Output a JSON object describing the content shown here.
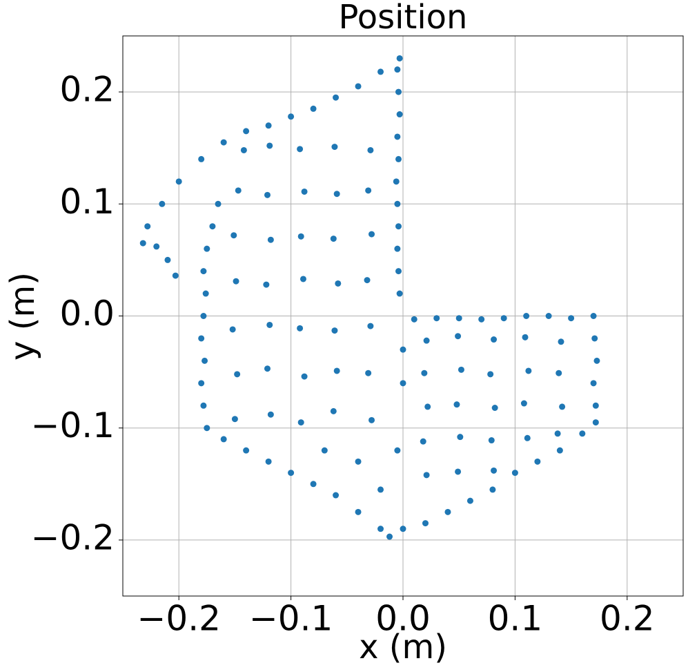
{
  "chart_data": {
    "type": "scatter",
    "title": "Position",
    "xlabel": "x (m)",
    "ylabel": "y (m)",
    "color": "#1f77b4",
    "grid": true,
    "xlim": [
      -0.25,
      0.25
    ],
    "ylim": [
      -0.25,
      0.25
    ],
    "xticks": [
      {
        "value": -0.2,
        "label": "−0.2"
      },
      {
        "value": -0.1,
        "label": "−0.1"
      },
      {
        "value": 0,
        "label": "0.0"
      },
      0.1,
      0.2
    ],
    "yticks": [
      {
        "value": -0.2,
        "label": "−0.2"
      },
      {
        "value": -0.1,
        "label": "−0.1"
      },
      {
        "value": 0,
        "label": "0.0"
      },
      0.1,
      0.2
    ],
    "x": [
      -0.175,
      -0.178,
      -0.18,
      -0.177,
      -0.18,
      -0.178,
      -0.176,
      -0.178,
      -0.175,
      -0.17,
      -0.165,
      -0.16,
      -0.14,
      -0.12,
      -0.1,
      -0.08,
      -0.06,
      -0.04,
      -0.02,
      -0.012,
      0,
      0.02,
      0.04,
      0.06,
      0.08,
      0.1,
      0.12,
      0.14,
      0.16,
      0.172,
      0.172,
      0.17,
      0.173,
      0.171,
      0.17,
      0.15,
      0.13,
      0.11,
      0.09,
      0.07,
      0.05,
      0.03,
      0.01,
      -0.003,
      -0.004,
      -0.005,
      -0.004,
      -0.005,
      -0.006,
      -0.004,
      -0.005,
      -0.003,
      -0.004,
      -0.005,
      -0.003,
      -0.02,
      -0.04,
      -0.06,
      -0.08,
      -0.1,
      -0.12,
      -0.14,
      -0.16,
      -0.18,
      -0.2,
      -0.215,
      -0.228,
      -0.232,
      -0.22,
      -0.21,
      -0.203,
      -0.15,
      -0.118,
      -0.091,
      -0.062,
      -0.028,
      -0.148,
      -0.121,
      -0.088,
      -0.059,
      -0.031,
      -0.152,
      -0.119,
      -0.092,
      -0.061,
      -0.029,
      -0.149,
      -0.122,
      -0.089,
      -0.058,
      -0.032,
      -0.151,
      -0.118,
      -0.091,
      -0.062,
      -0.028,
      -0.147,
      -0.121,
      -0.088,
      -0.059,
      -0.031,
      -0.142,
      -0.119,
      -0.092,
      -0.061,
      -0.029,
      0.021,
      0.049,
      0.081,
      0.109,
      0.141,
      0.019,
      0.052,
      0.078,
      0.112,
      0.139,
      0.022,
      0.048,
      0.082,
      0.108,
      0.142,
      0.018,
      0.051,
      0.079,
      0.111,
      0.138,
      0.021,
      0.049,
      0.081,
      -0.07,
      -0.04,
      -0.02,
      -0.005,
      0,
      0
    ],
    "y": [
      -0.1,
      -0.08,
      -0.06,
      -0.04,
      -0.02,
      0,
      0.02,
      0.04,
      0.06,
      0.08,
      0.1,
      -0.11,
      -0.12,
      -0.13,
      -0.14,
      -0.15,
      -0.16,
      -0.175,
      -0.19,
      -0.197,
      -0.19,
      -0.185,
      -0.175,
      -0.165,
      -0.155,
      -0.14,
      -0.13,
      -0.12,
      -0.105,
      -0.095,
      -0.08,
      -0.06,
      -0.04,
      -0.02,
      0,
      -0.002,
      0,
      0,
      -0.002,
      -0.003,
      -0.002,
      -0.002,
      -0.003,
      0.02,
      0.04,
      0.06,
      0.08,
      0.1,
      0.12,
      0.14,
      0.16,
      0.18,
      0.2,
      0.22,
      0.23,
      0.218,
      0.205,
      0.195,
      0.185,
      0.178,
      0.17,
      0.165,
      0.155,
      0.14,
      0.12,
      0.1,
      0.08,
      0.065,
      0.062,
      0.05,
      0.036,
      -0.092,
      -0.088,
      -0.095,
      -0.085,
      -0.093,
      -0.052,
      -0.047,
      -0.054,
      -0.049,
      -0.051,
      -0.012,
      -0.008,
      -0.011,
      -0.013,
      -0.009,
      0.031,
      0.028,
      0.033,
      0.029,
      0.032,
      0.072,
      0.068,
      0.071,
      0.069,
      0.073,
      0.112,
      0.108,
      0.111,
      0.109,
      0.112,
      0.148,
      0.152,
      0.149,
      0.151,
      0.148,
      -0.022,
      -0.018,
      -0.021,
      -0.019,
      -0.023,
      -0.051,
      -0.048,
      -0.052,
      -0.049,
      -0.051,
      -0.081,
      -0.079,
      -0.082,
      -0.078,
      -0.081,
      -0.112,
      -0.108,
      -0.111,
      -0.109,
      -0.105,
      -0.142,
      -0.139,
      -0.138,
      -0.12,
      -0.13,
      -0.155,
      -0.12,
      -0.06,
      -0.03
    ]
  }
}
